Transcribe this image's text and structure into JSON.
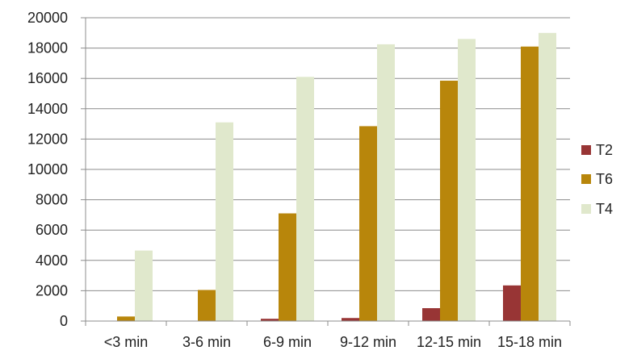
{
  "chart_data": {
    "type": "bar",
    "categories": [
      "<3 min",
      "3-6 min",
      "6-9 min",
      "9-12 min",
      "12-15 min",
      "15-18 min"
    ],
    "series": [
      {
        "name": "T2",
        "color": "#983535",
        "values": [
          0,
          0,
          150,
          200,
          850,
          2350
        ]
      },
      {
        "name": "T6",
        "color": "#b8860b",
        "values": [
          300,
          2050,
          7100,
          12850,
          15850,
          18100
        ]
      },
      {
        "name": "T4",
        "color": "#e0e8cc",
        "values": [
          4650,
          13100,
          16100,
          18250,
          18600,
          19000
        ]
      }
    ],
    "ylim": [
      0,
      20000
    ],
    "yticks": [
      0,
      2000,
      4000,
      6000,
      8000,
      10000,
      12000,
      14000,
      16000,
      18000,
      20000
    ],
    "grid": true,
    "legend_position": "right"
  }
}
